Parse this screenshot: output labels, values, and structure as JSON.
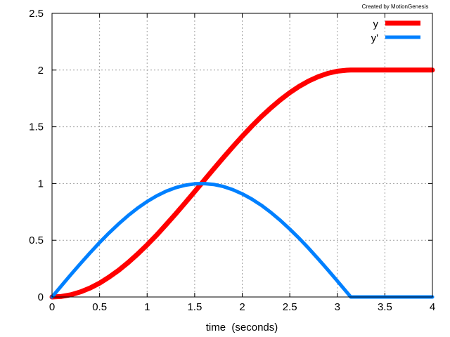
{
  "chart_data": {
    "type": "line",
    "title": "",
    "credit": "Created by MotionGenesis",
    "xlabel": "time  (seconds)",
    "ylabel": "",
    "xlim": [
      0,
      4
    ],
    "ylim": [
      0,
      2.5
    ],
    "grid": true,
    "legend_position": "top-right",
    "xticks": [
      "0",
      "0.5",
      "1",
      "1.5",
      "2",
      "2.5",
      "3",
      "3.5",
      "4"
    ],
    "yticks": [
      "0",
      "0.5",
      "1",
      "1.5",
      "2",
      "2.5"
    ],
    "x": [
      0,
      0.1,
      0.2,
      0.3,
      0.4,
      0.5,
      0.6,
      0.7,
      0.8,
      0.9,
      1.0,
      1.1,
      1.2,
      1.3,
      1.4,
      1.5,
      1.6,
      1.7,
      1.8,
      1.9,
      2.0,
      2.1,
      2.2,
      2.3,
      2.4,
      2.5,
      2.6,
      2.7,
      2.8,
      2.9,
      3.0,
      3.1,
      3.1416,
      3.2,
      3.3,
      3.4,
      3.5,
      3.6,
      3.7,
      3.8,
      3.9,
      4.0
    ],
    "series": [
      {
        "name": "y",
        "color": "#ff0000",
        "values": [
          0,
          0.005,
          0.02,
          0.045,
          0.079,
          0.122,
          0.175,
          0.235,
          0.303,
          0.378,
          0.46,
          0.546,
          0.638,
          0.732,
          0.83,
          0.929,
          1.029,
          1.129,
          1.227,
          1.323,
          1.416,
          1.505,
          1.589,
          1.666,
          1.737,
          1.801,
          1.857,
          1.904,
          1.942,
          1.971,
          1.99,
          1.999,
          2.0,
          2,
          2,
          2,
          2,
          2,
          2,
          2,
          2,
          2
        ]
      },
      {
        "name": "y'",
        "color": "#0080ff",
        "values": [
          0,
          0.0998,
          0.1987,
          0.2955,
          0.3894,
          0.4794,
          0.5646,
          0.6442,
          0.7174,
          0.7833,
          0.8415,
          0.8912,
          0.932,
          0.9636,
          0.9854,
          0.9975,
          0.9996,
          0.9917,
          0.9738,
          0.9463,
          0.9093,
          0.8632,
          0.8085,
          0.7457,
          0.6755,
          0.5985,
          0.5155,
          0.4274,
          0.335,
          0.2392,
          0.1411,
          0.0416,
          0,
          0,
          0,
          0,
          0,
          0,
          0,
          0,
          0,
          0
        ]
      }
    ]
  }
}
